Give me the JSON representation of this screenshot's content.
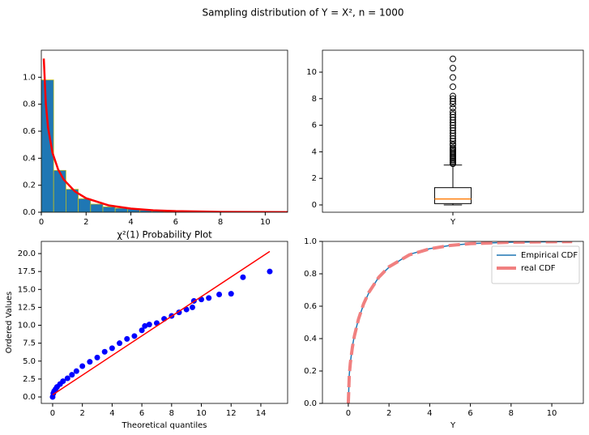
{
  "title": "Sampling distribution of Y = X², n = 1000",
  "chart_data": [
    {
      "type": "histogram",
      "bins": [
        0,
        0.55,
        1.1,
        1.65,
        2.2,
        2.75,
        3.3,
        3.85,
        4.4,
        4.95,
        5.5,
        6.05,
        6.6,
        7.15,
        7.7,
        8.25,
        8.8,
        9.35,
        9.9,
        10.45,
        11
      ],
      "values": [
        0.98,
        0.31,
        0.17,
        0.1,
        0.06,
        0.04,
        0.03,
        0.025,
        0.015,
        0.01,
        0.008,
        0.005,
        0.004,
        0.003,
        0.002,
        0.002,
        0.001,
        0.001,
        0.001,
        0.001
      ],
      "color": "#1f77b4",
      "edgecolor": "#bcbd22",
      "lines": [
        {
          "color": "red",
          "x": [
            0.11,
            0.2,
            0.3,
            0.5,
            0.75,
            1,
            1.5,
            2,
            3,
            4,
            5,
            6,
            8,
            11
          ],
          "values": [
            1.138,
            0.807,
            0.627,
            0.439,
            0.317,
            0.242,
            0.154,
            0.104,
            0.051,
            0.027,
            0.0146,
            0.0081,
            0.0026,
            0.0005
          ]
        }
      ],
      "xlim": [
        0,
        11
      ],
      "xticks": [
        0,
        2,
        4,
        6,
        8,
        10
      ],
      "ylim": [
        0,
        1.2
      ],
      "yticks": [
        {
          "value": 0,
          "label": "0.0"
        },
        0.2,
        0.4,
        0.6,
        0.8,
        {
          "value": 1,
          "label": "1.0"
        }
      ]
    },
    {
      "type": "box",
      "categories": [
        "Y"
      ],
      "boxes": [
        {
          "whislo": 0,
          "q1": 0.1,
          "med": 0.45,
          "q3": 1.3,
          "whishi": 3.0,
          "fliers": [
            3.1,
            3.2,
            3.3,
            3.4,
            3.5,
            3.6,
            3.7,
            3.8,
            3.9,
            4.0,
            4.1,
            4.2,
            4.3,
            4.5,
            4.6,
            4.8,
            5.0,
            5.2,
            5.4,
            5.6,
            5.8,
            6.0,
            6.2,
            6.4,
            6.6,
            6.8,
            7.0,
            7.3,
            7.6,
            7.8,
            8.0,
            8.2,
            8.9,
            9.6,
            10.3,
            11.0
          ]
        }
      ],
      "median_color": "#ff7f0e",
      "ylim": [
        -0.55,
        11.65
      ],
      "yticks": [
        0,
        2,
        4,
        6,
        8,
        10
      ]
    },
    {
      "type": "scatter",
      "title": "χ²(1) Probability Plot",
      "xlabel": "Theoretical quantiles",
      "ylabel": "Ordered Values",
      "color": "blue",
      "x": [
        0,
        0.05,
        0.1,
        0.2,
        0.3,
        0.5,
        0.7,
        1,
        1.3,
        1.6,
        2,
        2.5,
        3,
        3.5,
        4,
        4.5,
        5,
        5.5,
        6,
        6.2,
        6.5,
        7,
        7.5,
        8,
        8.5,
        9,
        9.4,
        9.5,
        10,
        10.5,
        11.2,
        12,
        12.8,
        14.6
      ],
      "values": [
        0,
        0.5,
        0.8,
        1.1,
        1.4,
        1.8,
        2.2,
        2.6,
        3.1,
        3.6,
        4.3,
        4.9,
        5.5,
        6.3,
        6.8,
        7.5,
        8.1,
        8.5,
        9.3,
        9.9,
        10.1,
        10.3,
        10.9,
        11.3,
        11.8,
        12.2,
        12.5,
        13.4,
        13.6,
        13.8,
        14.3,
        14.4,
        16.7,
        17.5
      ],
      "lines": [
        {
          "color": "red",
          "x": [
            0,
            14.6
          ],
          "values": [
            0.3,
            20.3
          ]
        }
      ],
      "xlim": [
        -0.76,
        15.8
      ],
      "xticks": [
        0,
        2,
        4,
        6,
        8,
        10,
        12,
        14
      ],
      "ylim": [
        -0.9,
        21.7
      ],
      "yticks": [
        {
          "value": 0,
          "label": "0.0"
        },
        2.5,
        {
          "value": 5,
          "label": "5.0"
        },
        7.5,
        {
          "value": 10,
          "label": "10.0"
        },
        12.5,
        {
          "value": 15,
          "label": "15.0"
        },
        17.5,
        {
          "value": 20,
          "label": "20.0"
        }
      ]
    },
    {
      "type": "line",
      "xlabel": "Y",
      "legend": "upper right",
      "series": [
        {
          "name": "Empirical CDF",
          "color": "#1f77b4",
          "linestyle": "solid",
          "x": [
            0,
            0.05,
            0.1,
            0.2,
            0.3,
            0.5,
            0.75,
            1,
            1.5,
            2,
            3,
            4,
            5,
            6,
            8,
            11
          ],
          "values": [
            0,
            0.18,
            0.25,
            0.35,
            0.42,
            0.52,
            0.61,
            0.68,
            0.78,
            0.84,
            0.92,
            0.955,
            0.975,
            0.986,
            0.995,
            1
          ]
        },
        {
          "name": "real CDF",
          "color": "#f08080",
          "linestyle": "dashed",
          "x": [
            0,
            0.05,
            0.1,
            0.2,
            0.3,
            0.5,
            0.75,
            1,
            1.5,
            2,
            3,
            4,
            5,
            6,
            8,
            11
          ],
          "values": [
            0,
            0.177,
            0.248,
            0.345,
            0.416,
            0.52,
            0.614,
            0.683,
            0.779,
            0.843,
            0.917,
            0.954,
            0.975,
            0.986,
            0.995,
            0.999
          ]
        }
      ],
      "xlim": [
        -1.27,
        11.55
      ],
      "xticks": [
        0,
        2,
        4,
        6,
        8,
        10
      ],
      "ylim": [
        0,
        1
      ],
      "yticks": [
        {
          "value": 0,
          "label": "0.0"
        },
        0.2,
        0.4,
        0.6,
        0.8,
        {
          "value": 1,
          "label": "1.0"
        }
      ]
    }
  ]
}
